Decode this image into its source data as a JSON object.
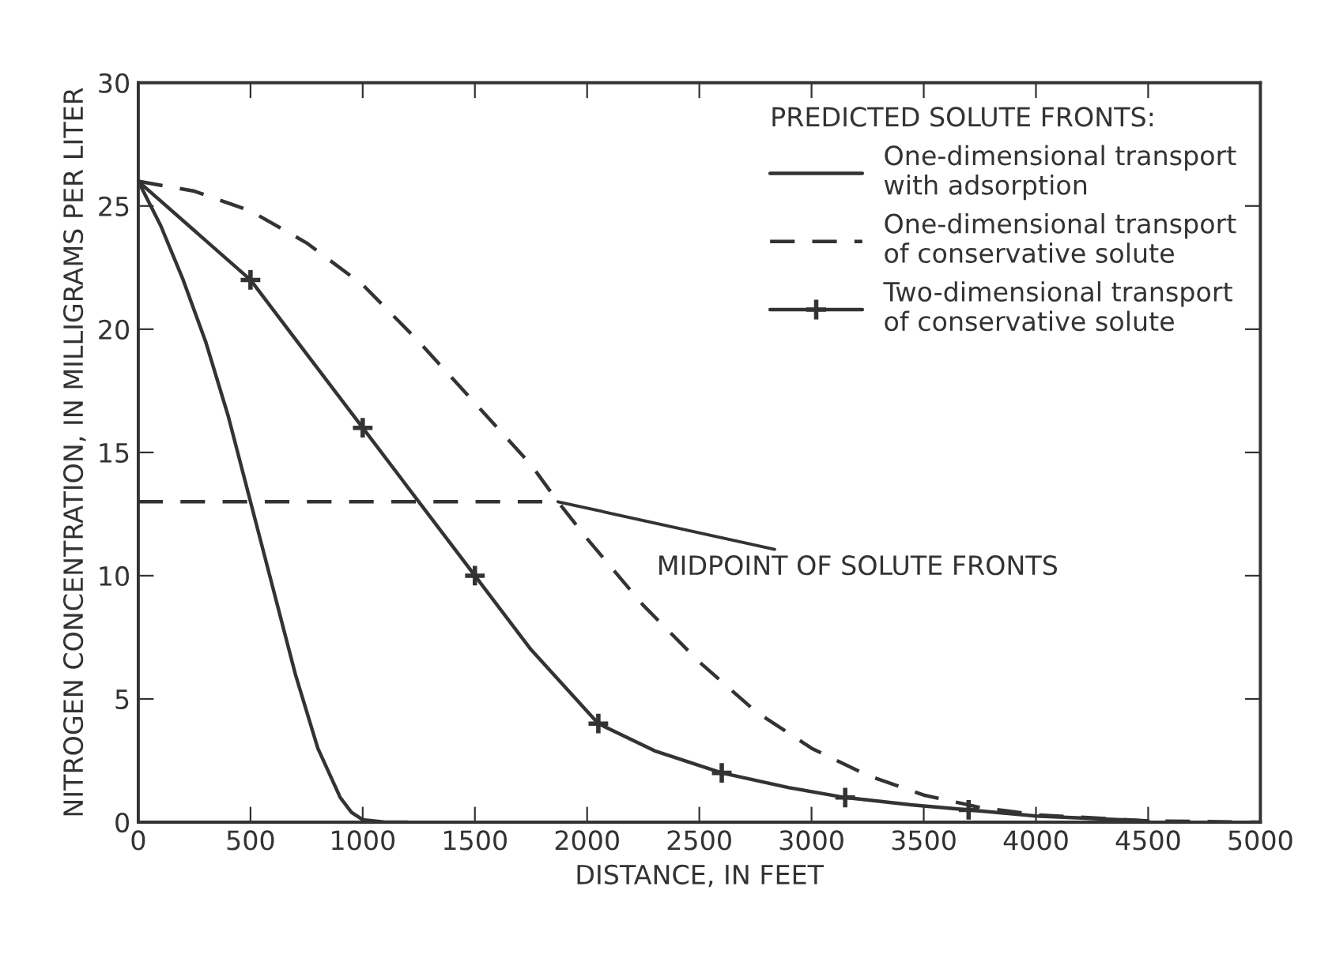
{
  "chart_data": {
    "type": "line",
    "xlabel": "DISTANCE, IN FEET",
    "ylabel": "NITROGEN CONCENTRATION, IN MILLIGRAMS PER LITER",
    "legend_title": "PREDICTED SOLUTE FRONTS:",
    "legend": "top right",
    "grid": false,
    "xlim": [
      0,
      5000
    ],
    "xticks": [
      0,
      500,
      1000,
      1500,
      2000,
      2500,
      3000,
      3500,
      4000,
      4500,
      5000
    ],
    "ylim": [
      0,
      30
    ],
    "yticks": [
      0,
      5,
      10,
      15,
      20,
      25,
      30
    ],
    "series": [
      {
        "name": "One-dimensional transport\nwith adsorption",
        "color": "#333333",
        "line_style": "solid",
        "marker": "none",
        "x": [
          0,
          100,
          200,
          300,
          400,
          500,
          600,
          700,
          800,
          900,
          950,
          1000,
          1100,
          1200
        ],
        "values": [
          26,
          24.2,
          22,
          19.5,
          16.5,
          13,
          9.5,
          6,
          3,
          1,
          0.4,
          0.1,
          0,
          0
        ]
      },
      {
        "name": "One-dimensional transport\nof conservative solute",
        "color": "#333333",
        "line_style": "dashed",
        "marker": "none",
        "x": [
          0,
          250,
          500,
          750,
          1000,
          1250,
          1500,
          1750,
          1870,
          2000,
          2250,
          2500,
          2750,
          3000,
          3250,
          3500,
          3750,
          4000,
          4500,
          5000
        ],
        "values": [
          26,
          25.6,
          24.8,
          23.5,
          21.8,
          19.5,
          17,
          14.5,
          13,
          11.5,
          8.8,
          6.5,
          4.5,
          3,
          1.9,
          1.1,
          0.6,
          0.3,
          0.05,
          0
        ]
      },
      {
        "name": "Two-dimensional transport\nof conservative solute",
        "color": "#333333",
        "line_style": "solid",
        "marker": "none",
        "x": [
          0,
          250,
          500,
          750,
          1000,
          1250,
          1500,
          1750,
          2050,
          2300,
          2600,
          2900,
          3150,
          3450,
          3700,
          4000,
          4500
        ],
        "values": [
          26,
          24,
          22,
          19,
          16,
          13,
          10,
          7,
          4,
          2.9,
          2,
          1.4,
          1,
          0.7,
          0.5,
          0.25,
          0.05
        ]
      },
      {
        "type": "scatter",
        "color": "#333333",
        "marker": "cross",
        "x": [
          500,
          1000,
          1500,
          2050,
          2600,
          3150,
          3700
        ],
        "values": [
          22,
          16,
          10,
          4,
          2,
          1,
          0.5
        ]
      },
      {
        "color": "#333333",
        "line_style": "dashed",
        "marker": "none",
        "x": [
          0,
          1870
        ],
        "values": [
          13,
          13
        ]
      }
    ],
    "annotations": [
      {
        "text": "MIDPOINT OF SOLUTE FRONTS",
        "x": 1870,
        "y": 13
      }
    ]
  }
}
